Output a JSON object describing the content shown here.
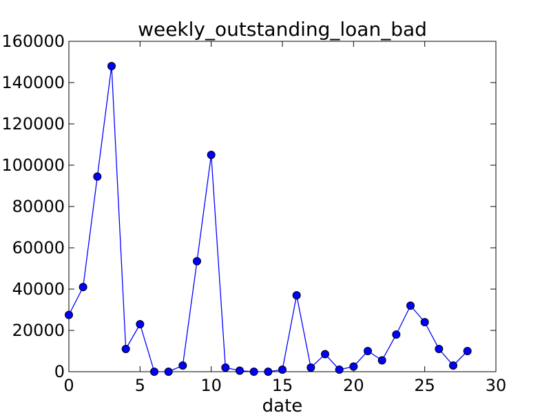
{
  "chart_data": {
    "type": "line",
    "title": "weekly_outstanding_loan_bad",
    "xlabel": "date",
    "ylabel": "",
    "xlim": [
      0,
      30
    ],
    "ylim": [
      0,
      160000
    ],
    "xticks": [
      0,
      5,
      10,
      15,
      20,
      25,
      30
    ],
    "yticks": [
      0,
      20000,
      40000,
      60000,
      80000,
      100000,
      120000,
      140000,
      160000
    ],
    "grid": false,
    "series": [
      {
        "color": "#0000ff",
        "marker": "circle",
        "x": [
          0,
          1,
          2,
          3,
          4,
          5,
          6,
          7,
          8,
          9,
          10,
          11,
          12,
          13,
          14,
          15,
          16,
          17,
          18,
          19,
          20,
          21,
          22,
          23,
          24,
          25,
          26,
          27,
          28
        ],
        "values": [
          27500,
          41000,
          94500,
          148000,
          11000,
          23000,
          0,
          0,
          3000,
          53500,
          105000,
          2000,
          500,
          0,
          0,
          1000,
          37000,
          2000,
          8500,
          1000,
          2500,
          10000,
          5500,
          18000,
          32000,
          24000,
          11000,
          3000,
          10000
        ]
      }
    ]
  }
}
